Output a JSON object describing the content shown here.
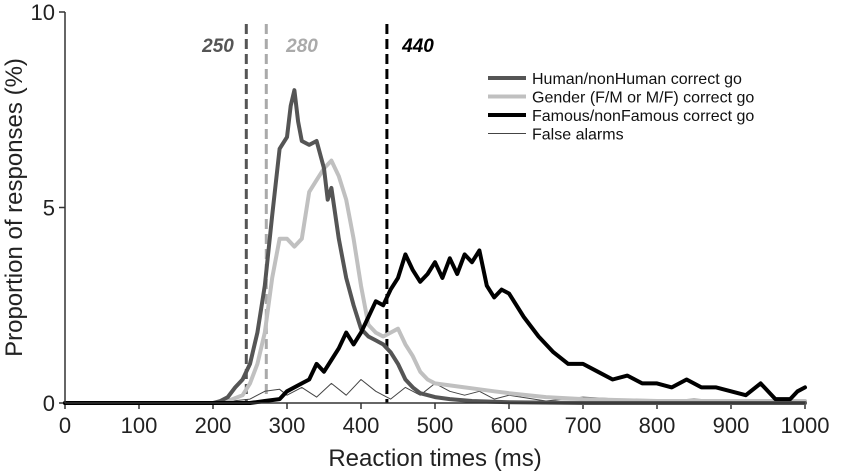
{
  "chart_data": {
    "type": "line",
    "xlabel": "Reaction times (ms)",
    "ylabel": "Proportion of responses (%)",
    "xlim": [
      0,
      1000
    ],
    "ylim": [
      0,
      10
    ],
    "xticks": [
      "0",
      "100",
      "200",
      "300",
      "400",
      "500",
      "600",
      "700",
      "800",
      "900",
      "1000"
    ],
    "yticks": [
      "0",
      "5",
      "10"
    ],
    "grid": false,
    "legend_position": "top-right",
    "thresholds": [
      {
        "label": "250",
        "x": 245,
        "color": "#555555"
      },
      {
        "label": "280",
        "x": 272,
        "color": "#aaaaaa"
      },
      {
        "label": "440",
        "x": 435,
        "color": "#000000"
      }
    ],
    "series": [
      {
        "name": "Human/nonHuman correct go",
        "color": "#555555",
        "width": 4,
        "x": [
          0,
          180,
          200,
          210,
          220,
          230,
          240,
          250,
          260,
          270,
          280,
          290,
          300,
          305,
          310,
          315,
          320,
          330,
          340,
          350,
          355,
          360,
          370,
          380,
          390,
          400,
          410,
          420,
          430,
          440,
          450,
          460,
          470,
          480,
          500,
          520,
          550,
          600,
          700,
          800,
          900,
          1000
        ],
        "y": [
          0,
          0,
          0,
          0.05,
          0.15,
          0.4,
          0.6,
          1.0,
          1.8,
          3.0,
          4.8,
          6.5,
          6.8,
          7.6,
          8.0,
          7.2,
          6.7,
          6.6,
          6.7,
          6.0,
          5.2,
          5.5,
          4.2,
          3.2,
          2.5,
          1.9,
          1.7,
          1.6,
          1.5,
          1.3,
          1.0,
          0.6,
          0.4,
          0.25,
          0.15,
          0.1,
          0.05,
          0.02,
          0,
          0,
          0,
          0
        ]
      },
      {
        "name": "Gender (F/M or M/F) correct go",
        "color": "#c0c0c0",
        "width": 4,
        "x": [
          0,
          200,
          220,
          240,
          250,
          260,
          270,
          280,
          290,
          300,
          310,
          320,
          330,
          340,
          350,
          360,
          370,
          380,
          390,
          400,
          410,
          420,
          430,
          440,
          450,
          460,
          470,
          480,
          490,
          500,
          520,
          540,
          560,
          580,
          600,
          650,
          700,
          800,
          900,
          1000
        ],
        "y": [
          0,
          0,
          0.05,
          0.2,
          0.5,
          1.0,
          1.8,
          3.2,
          4.2,
          4.2,
          4.0,
          4.2,
          5.4,
          5.7,
          6.0,
          6.2,
          5.8,
          5.2,
          4.2,
          3.0,
          2.0,
          1.8,
          1.7,
          1.8,
          1.9,
          1.5,
          1.2,
          0.8,
          0.6,
          0.5,
          0.45,
          0.4,
          0.35,
          0.3,
          0.25,
          0.15,
          0.1,
          0.05,
          0.05,
          0.05
        ]
      },
      {
        "name": "Famous/nonFamous correct go",
        "color": "#000000",
        "width": 4,
        "x": [
          0,
          250,
          270,
          290,
          300,
          320,
          330,
          340,
          350,
          360,
          370,
          380,
          390,
          400,
          410,
          420,
          430,
          440,
          450,
          460,
          470,
          480,
          490,
          500,
          510,
          520,
          530,
          540,
          550,
          560,
          570,
          580,
          590,
          600,
          620,
          640,
          660,
          680,
          700,
          720,
          740,
          760,
          780,
          800,
          820,
          840,
          860,
          880,
          900,
          920,
          940,
          960,
          980,
          990,
          1000
        ],
        "y": [
          0,
          0,
          0.05,
          0.1,
          0.3,
          0.5,
          0.6,
          1.0,
          0.8,
          1.1,
          1.4,
          1.8,
          1.5,
          1.8,
          2.2,
          2.6,
          2.5,
          2.9,
          3.2,
          3.8,
          3.4,
          3.1,
          3.3,
          3.6,
          3.2,
          3.7,
          3.3,
          3.8,
          3.6,
          3.9,
          3.0,
          2.7,
          2.9,
          2.8,
          2.2,
          1.7,
          1.3,
          1.0,
          1.0,
          0.8,
          0.6,
          0.7,
          0.5,
          0.5,
          0.4,
          0.6,
          0.4,
          0.4,
          0.3,
          0.2,
          0.5,
          0.1,
          0.1,
          0.3,
          0.4
        ]
      },
      {
        "name": "False alarms",
        "color": "#444444",
        "width": 1,
        "x": [
          0,
          200,
          250,
          270,
          290,
          300,
          320,
          340,
          360,
          380,
          400,
          420,
          440,
          460,
          480,
          500,
          520,
          540,
          560,
          580,
          600,
          650,
          700,
          750,
          800,
          850,
          900,
          950,
          1000
        ],
        "y": [
          0,
          0,
          0.1,
          0.3,
          0.35,
          0.2,
          0.4,
          0.15,
          0.5,
          0.2,
          0.6,
          0.3,
          0.1,
          0.4,
          0.2,
          0.5,
          0.3,
          0.2,
          0.3,
          0.1,
          0.2,
          0.05,
          0.15,
          0.1,
          0.05,
          0.1,
          0.05,
          0.05,
          0.05
        ]
      }
    ]
  }
}
